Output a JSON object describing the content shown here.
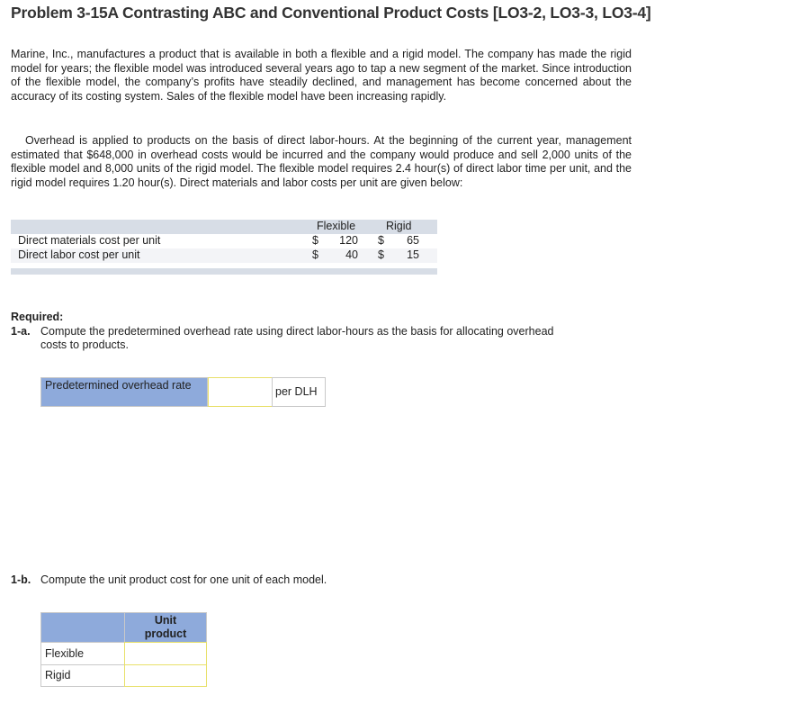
{
  "header": {
    "title": "Problem 3-15A Contrasting ABC and Conventional Product Costs [LO3-2, LO3-3, LO3-4]"
  },
  "paragraphs": [
    "Marine, Inc., manufactures a product that is available in both a flexible and a rigid model. The company has made the rigid model for years; the flexible model was introduced several years ago to tap a new segment of the market. Since introduction of the flexible model, the company’s profits have steadily declined, and management has become concerned about the accuracy of its costing system. Sales of the flexible model have been increasing rapidly.",
    "Overhead is applied to products on the basis of direct labor-hours. At the beginning of the current year, management estimated that $648,000 in overhead costs would be incurred and the company would produce and sell 2,000 units of the flexible model and 8,000 units of the rigid model. The flexible model requires 2.4 hour(s) of direct labor time per unit, and the rigid model requires 1.20 hour(s). Direct materials and labor costs per unit are given below:"
  ],
  "cost_table": {
    "columns": [
      "Flexible",
      "Rigid"
    ],
    "rows": [
      {
        "label": "Direct materials cost per unit",
        "cells": [
          {
            "symbol": "$",
            "amount": "120"
          },
          {
            "symbol": "$",
            "amount": "65"
          }
        ]
      },
      {
        "label": "Direct labor cost per unit",
        "cells": [
          {
            "symbol": "$",
            "amount": "40"
          },
          {
            "symbol": "$",
            "amount": "15"
          }
        ]
      }
    ]
  },
  "required": {
    "heading": "Required:",
    "part_a": {
      "number": "1-a.",
      "text": "Compute the predetermined overhead rate using direct labor-hours as the basis for allocating overhead costs to products.",
      "input_label": "Predetermined overhead rate",
      "unit": "per DLH"
    },
    "part_b": {
      "number": "1-b.",
      "text": "Compute the unit product cost for one unit of each model.",
      "column_header": "Unit product cost",
      "rows": [
        "Flexible",
        "Rigid"
      ]
    }
  }
}
